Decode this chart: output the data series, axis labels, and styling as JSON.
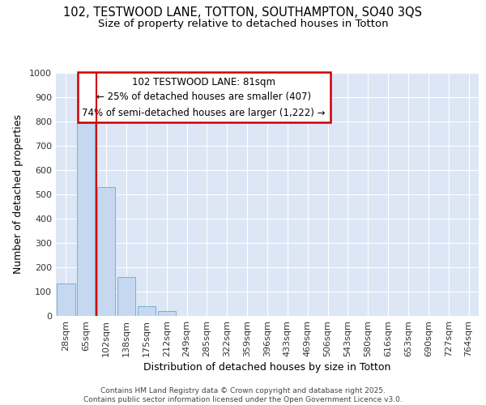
{
  "title_line1": "102, TESTWOOD LANE, TOTTON, SOUTHAMPTON, SO40 3QS",
  "title_line2": "Size of property relative to detached houses in Totton",
  "xlabel": "Distribution of detached houses by size in Totton",
  "ylabel": "Number of detached properties",
  "categories": [
    "28sqm",
    "65sqm",
    "102sqm",
    "138sqm",
    "175sqm",
    "212sqm",
    "249sqm",
    "285sqm",
    "322sqm",
    "359sqm",
    "396sqm",
    "433sqm",
    "469sqm",
    "506sqm",
    "543sqm",
    "580sqm",
    "616sqm",
    "653sqm",
    "690sqm",
    "727sqm",
    "764sqm"
  ],
  "values": [
    135,
    795,
    530,
    160,
    40,
    20,
    0,
    0,
    0,
    0,
    0,
    0,
    0,
    0,
    0,
    0,
    0,
    0,
    0,
    0,
    0
  ],
  "bar_color": "#c5d8ef",
  "bar_edge_color": "#7aafd4",
  "vline_x": 1.5,
  "vline_color": "#cc0000",
  "annotation_text": "102 TESTWOOD LANE: 81sqm\n← 25% of detached houses are smaller (407)\n74% of semi-detached houses are larger (1,222) →",
  "annotation_box_color": "#ffffff",
  "annotation_box_edge_color": "#cc0000",
  "ylim": [
    0,
    1000
  ],
  "yticks": [
    0,
    100,
    200,
    300,
    400,
    500,
    600,
    700,
    800,
    900,
    1000
  ],
  "bg_color": "#dce6f5",
  "grid_color": "#ffffff",
  "footer_text": "Contains HM Land Registry data © Crown copyright and database right 2025.\nContains public sector information licensed under the Open Government Licence v3.0.",
  "title_fontsize": 10.5,
  "subtitle_fontsize": 9.5,
  "axis_label_fontsize": 9,
  "tick_fontsize": 8,
  "annotation_fontsize": 8.5
}
